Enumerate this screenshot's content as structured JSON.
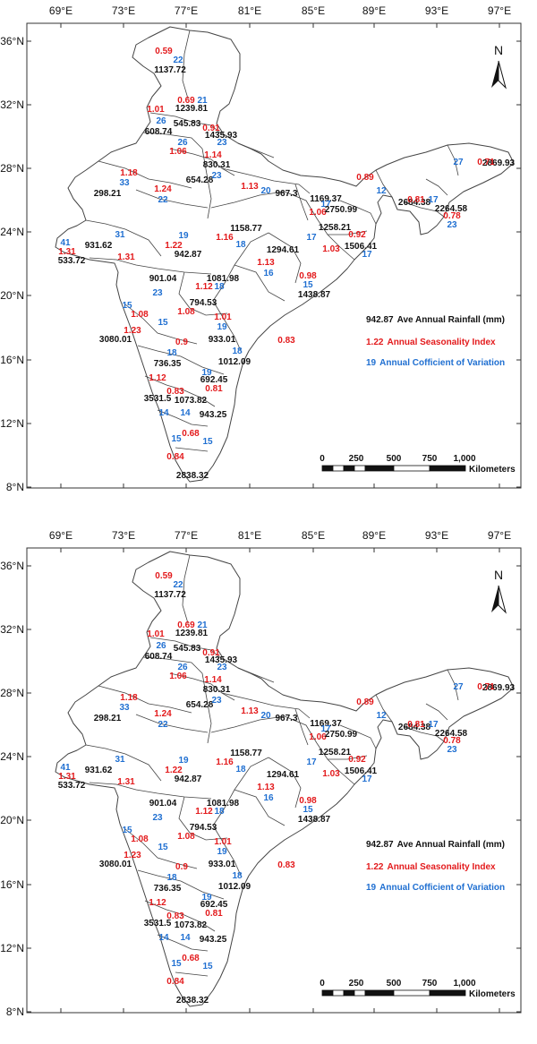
{
  "colors": {
    "rainfall": "#111111",
    "seasonality": "#e31a1c",
    "cv": "#1f6fd1",
    "boundary": "#444444",
    "frame": "#333333"
  },
  "longitude_labels": [
    "69°E",
    "73°E",
    "77°E",
    "81°E",
    "85°E",
    "89°E",
    "93°E",
    "97°E"
  ],
  "latitude_labels": [
    "36°N",
    "32°N",
    "28°N",
    "24°N",
    "20°N",
    "16°N",
    "12°N",
    "8°N"
  ],
  "north_arrow": {
    "label": "N",
    "icon": "north-arrow-icon"
  },
  "legend": {
    "rainfall": {
      "value": "942.87",
      "text": "Ave Annual Rainfall (mm)"
    },
    "seasonality": {
      "value": "1.22",
      "text": "Annual Seasonality Index"
    },
    "cv": {
      "value": "19",
      "text": "Annual Cofficient of Variation"
    }
  },
  "scale_bar": {
    "ticks": [
      "0",
      "250",
      "500",
      "750",
      "1,000"
    ],
    "unit": "Kilometers"
  },
  "annotations": [
    {
      "text": "0.59",
      "kind": "seasonality"
    },
    {
      "text": "22",
      "kind": "cv"
    },
    {
      "text": "1137.72",
      "kind": "rainfall"
    },
    {
      "text": "0.69",
      "kind": "seasonality"
    },
    {
      "text": "21",
      "kind": "cv"
    },
    {
      "text": "1239.81",
      "kind": "rainfall"
    },
    {
      "text": "1.01",
      "kind": "seasonality"
    },
    {
      "text": "26",
      "kind": "cv"
    },
    {
      "text": "545.83",
      "kind": "rainfall"
    },
    {
      "text": "608.74",
      "kind": "rainfall"
    },
    {
      "text": "0.91",
      "kind": "seasonality"
    },
    {
      "text": "1435.93",
      "kind": "rainfall"
    },
    {
      "text": "26",
      "kind": "cv"
    },
    {
      "text": "23",
      "kind": "cv"
    },
    {
      "text": "1.06",
      "kind": "seasonality"
    },
    {
      "text": "1.14",
      "kind": "seasonality"
    },
    {
      "text": "830.31",
      "kind": "rainfall"
    },
    {
      "text": "1.18",
      "kind": "seasonality"
    },
    {
      "text": "33",
      "kind": "cv"
    },
    {
      "text": "654.28",
      "kind": "rainfall"
    },
    {
      "text": "23",
      "kind": "cv"
    },
    {
      "text": "298.21",
      "kind": "rainfall"
    },
    {
      "text": "1.24",
      "kind": "seasonality"
    },
    {
      "text": "22",
      "kind": "cv"
    },
    {
      "text": "1.13",
      "kind": "seasonality"
    },
    {
      "text": "20",
      "kind": "cv"
    },
    {
      "text": "967.3",
      "kind": "rainfall"
    },
    {
      "text": "1169.37",
      "kind": "rainfall"
    },
    {
      "text": "0.89",
      "kind": "seasonality"
    },
    {
      "text": "12",
      "kind": "cv"
    },
    {
      "text": "2869.93",
      "kind": "rainfall"
    },
    {
      "text": "27",
      "kind": "cv"
    },
    {
      "text": "0.71",
      "kind": "seasonality"
    },
    {
      "text": "17",
      "kind": "cv"
    },
    {
      "text": "1.06",
      "kind": "seasonality"
    },
    {
      "text": "2750.99",
      "kind": "rainfall"
    },
    {
      "text": "2684.38",
      "kind": "rainfall"
    },
    {
      "text": "0.81",
      "kind": "seasonality"
    },
    {
      "text": "17",
      "kind": "cv"
    },
    {
      "text": "2264.58",
      "kind": "rainfall"
    },
    {
      "text": "0.78",
      "kind": "seasonality"
    },
    {
      "text": "23",
      "kind": "cv"
    },
    {
      "text": "1158.77",
      "kind": "rainfall"
    },
    {
      "text": "1.16",
      "kind": "seasonality"
    },
    {
      "text": "18",
      "kind": "cv"
    },
    {
      "text": "1258.21",
      "kind": "rainfall"
    },
    {
      "text": "17",
      "kind": "cv"
    },
    {
      "text": "0.92",
      "kind": "seasonality"
    },
    {
      "text": "1506.41",
      "kind": "rainfall"
    },
    {
      "text": "1.03",
      "kind": "seasonality"
    },
    {
      "text": "17",
      "kind": "cv"
    },
    {
      "text": "41",
      "kind": "cv"
    },
    {
      "text": "31",
      "kind": "cv"
    },
    {
      "text": "931.62",
      "kind": "rainfall"
    },
    {
      "text": "1.31",
      "kind": "seasonality"
    },
    {
      "text": "533.72",
      "kind": "rainfall"
    },
    {
      "text": "1.31",
      "kind": "seasonality"
    },
    {
      "text": "19",
      "kind": "cv"
    },
    {
      "text": "1.22",
      "kind": "seasonality"
    },
    {
      "text": "942.87",
      "kind": "rainfall"
    },
    {
      "text": "1294.61",
      "kind": "rainfall"
    },
    {
      "text": "1.13",
      "kind": "seasonality"
    },
    {
      "text": "16",
      "kind": "cv"
    },
    {
      "text": "0.98",
      "kind": "seasonality"
    },
    {
      "text": "15",
      "kind": "cv"
    },
    {
      "text": "1438.87",
      "kind": "rainfall"
    },
    {
      "text": "901.04",
      "kind": "rainfall"
    },
    {
      "text": "1081.98",
      "kind": "rainfall"
    },
    {
      "text": "1.12",
      "kind": "seasonality"
    },
    {
      "text": "18",
      "kind": "cv"
    },
    {
      "text": "23",
      "kind": "cv"
    },
    {
      "text": "15",
      "kind": "cv"
    },
    {
      "text": "1.08",
      "kind": "seasonality"
    },
    {
      "text": "794.53",
      "kind": "rainfall"
    },
    {
      "text": "1.08",
      "kind": "seasonality"
    },
    {
      "text": "15",
      "kind": "cv"
    },
    {
      "text": "1.01",
      "kind": "seasonality"
    },
    {
      "text": "19",
      "kind": "cv"
    },
    {
      "text": "1.23",
      "kind": "seasonality"
    },
    {
      "text": "3080.01",
      "kind": "rainfall"
    },
    {
      "text": "933.01",
      "kind": "rainfall"
    },
    {
      "text": "0.9",
      "kind": "seasonality"
    },
    {
      "text": "0.83",
      "kind": "seasonality"
    },
    {
      "text": "18",
      "kind": "cv"
    },
    {
      "text": "736.35",
      "kind": "rainfall"
    },
    {
      "text": "18",
      "kind": "cv"
    },
    {
      "text": "1012.09",
      "kind": "rainfall"
    },
    {
      "text": "1.12",
      "kind": "seasonality"
    },
    {
      "text": "19",
      "kind": "cv"
    },
    {
      "text": "692.45",
      "kind": "rainfall"
    },
    {
      "text": "0.83",
      "kind": "seasonality"
    },
    {
      "text": "0.81",
      "kind": "seasonality"
    },
    {
      "text": "3531.5",
      "kind": "rainfall"
    },
    {
      "text": "1073.82",
      "kind": "rainfall"
    },
    {
      "text": "14",
      "kind": "cv"
    },
    {
      "text": "14",
      "kind": "cv"
    },
    {
      "text": "943.25",
      "kind": "rainfall"
    },
    {
      "text": "0.68",
      "kind": "seasonality"
    },
    {
      "text": "15",
      "kind": "cv"
    },
    {
      "text": "15",
      "kind": "cv"
    },
    {
      "text": "0.84",
      "kind": "seasonality"
    },
    {
      "text": "2838.32",
      "kind": "rainfall"
    }
  ]
}
